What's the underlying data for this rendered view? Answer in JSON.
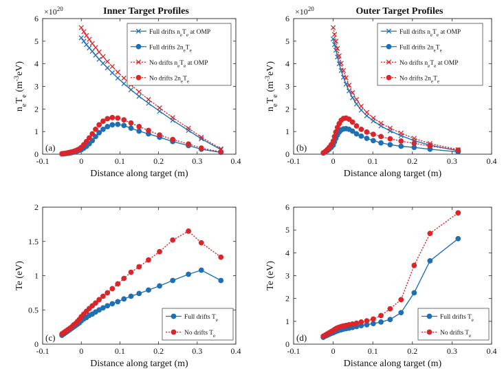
{
  "colors": {
    "full": "#1f6fb5",
    "nodrift": "#d9262b"
  },
  "chart_data": [
    {
      "id": "a",
      "type": "line",
      "tag": "(a)",
      "title": "Inner Target Profiles",
      "xlabel": "Distance along target (m)",
      "ylabel_main": "n",
      "ylabel_sub1": "e",
      "ylabel_mid": "T",
      "ylabel_sub2": "e",
      "ylabel_unit_pre": "(m",
      "ylabel_unit_sup": "-3",
      "ylabel_unit_post": "eV)",
      "y_scale_label": "×10",
      "y_scale_exp": "20",
      "xlim": [
        -0.1,
        0.4
      ],
      "ylim": [
        0,
        6
      ],
      "xticks": [
        "-0.1",
        "0",
        "0.1",
        "0.2",
        "0.3",
        "0.4"
      ],
      "yticks": [
        "0",
        "1",
        "2",
        "3",
        "4",
        "5",
        "6"
      ],
      "legend_position": "top-right",
      "series": [
        {
          "name": "Full drifts n_eT_e at OMP",
          "nm": "Full drifts n",
          "s1": "e",
          "mid": "T",
          "s2": "e",
          "tail": " at OMP",
          "style": "full",
          "marker": "x",
          "x": [
            0.0,
            0.0066,
            0.0134,
            0.0207,
            0.0285,
            0.037,
            0.0462,
            0.0564,
            0.0677,
            0.0803,
            0.0944,
            0.1104,
            0.1287,
            0.1496,
            0.174,
            0.2026,
            0.2366,
            0.2774,
            0.3107,
            0.3613
          ],
          "y": [
            5.15,
            5.0,
            4.85,
            4.7,
            4.55,
            4.38,
            4.2,
            4.02,
            3.82,
            3.6,
            3.37,
            3.12,
            2.85,
            2.56,
            2.25,
            1.9,
            1.5,
            1.05,
            0.68,
            0.2
          ]
        },
        {
          "name": "Full drifts 2n_eT_e",
          "nm": "Full drifts 2n",
          "s1": "e",
          "mid": "T",
          "s2": "e",
          "tail": "",
          "style": "full",
          "marker": "o",
          "x": [
            -0.05,
            -0.045,
            -0.04,
            -0.035,
            -0.03,
            -0.025,
            -0.02,
            -0.015,
            -0.01,
            -0.005,
            0.0,
            0.0066,
            0.0134,
            0.0207,
            0.0285,
            0.037,
            0.0462,
            0.0564,
            0.0677,
            0.0803,
            0.0944,
            0.1104,
            0.1287,
            0.1496,
            0.174,
            0.2026,
            0.2366,
            0.2774,
            0.3107,
            0.3613
          ],
          "y": [
            0.01,
            0.02,
            0.03,
            0.04,
            0.05,
            0.07,
            0.09,
            0.11,
            0.14,
            0.17,
            0.2,
            0.27,
            0.35,
            0.46,
            0.6,
            0.78,
            0.95,
            1.1,
            1.22,
            1.3,
            1.32,
            1.27,
            1.15,
            1.02,
            0.9,
            0.75,
            0.56,
            0.38,
            0.22,
            0.08
          ]
        },
        {
          "name": "No drifts n_eT_e at OMP",
          "nm": "No drifts n",
          "s1": "e",
          "mid": "T",
          "s2": "e",
          "tail": " at OMP",
          "style": "nodrift",
          "marker": "x",
          "x": [
            0.0,
            0.0066,
            0.0134,
            0.0207,
            0.0285,
            0.037,
            0.0462,
            0.0564,
            0.0677,
            0.0803,
            0.0944,
            0.1104,
            0.1287,
            0.1496,
            0.174,
            0.2026,
            0.2366,
            0.2774,
            0.3107,
            0.3613
          ],
          "y": [
            5.6,
            5.42,
            5.25,
            5.08,
            4.9,
            4.72,
            4.52,
            4.32,
            4.1,
            3.88,
            3.63,
            3.37,
            3.07,
            2.76,
            2.42,
            2.05,
            1.62,
            1.15,
            0.75,
            0.24
          ]
        },
        {
          "name": "No drifts 2n_eT_e",
          "nm": "No drifts 2n",
          "s1": "e",
          "mid": "T",
          "s2": "e",
          "tail": "",
          "style": "nodrift",
          "marker": "o",
          "x": [
            -0.05,
            -0.045,
            -0.04,
            -0.035,
            -0.03,
            -0.025,
            -0.02,
            -0.015,
            -0.01,
            -0.005,
            0.0,
            0.0066,
            0.0134,
            0.0207,
            0.0285,
            0.037,
            0.0462,
            0.0564,
            0.0677,
            0.0803,
            0.0944,
            0.1104,
            0.1287,
            0.1496,
            0.174,
            0.2026,
            0.2366,
            0.2774,
            0.3107,
            0.3613
          ],
          "y": [
            0.02,
            0.03,
            0.04,
            0.06,
            0.08,
            0.1,
            0.12,
            0.15,
            0.19,
            0.23,
            0.3,
            0.42,
            0.56,
            0.72,
            0.9,
            1.1,
            1.3,
            1.46,
            1.57,
            1.62,
            1.6,
            1.52,
            1.38,
            1.22,
            1.05,
            0.85,
            0.65,
            0.45,
            0.27,
            0.1
          ]
        }
      ]
    },
    {
      "id": "b",
      "type": "line",
      "tag": "(b)",
      "title": "Outer Target Profiles",
      "xlabel": "Distance along target (m)",
      "ylabel_main": "n",
      "ylabel_sub1": "e",
      "ylabel_mid": "T",
      "ylabel_sub2": "e",
      "ylabel_unit_pre": "(m",
      "ylabel_unit_sup": "-3",
      "ylabel_unit_post": "eV)",
      "y_scale_label": "×10",
      "y_scale_exp": "20",
      "xlim": [
        -0.1,
        0.4
      ],
      "ylim": [
        0,
        6
      ],
      "xticks": [
        "-0.1",
        "0",
        "0.1",
        "0.2",
        "0.3",
        "0.4"
      ],
      "yticks": [
        "0",
        "1",
        "2",
        "3",
        "4",
        "5",
        "6"
      ],
      "legend_position": "top-right",
      "series": [
        {
          "name": "Full drifts n_eT_e at OMP",
          "nm": "Full drifts n",
          "s1": "e",
          "mid": "T",
          "s2": "e",
          "tail": " at OMP",
          "style": "full",
          "marker": "x",
          "x": [
            0.0,
            0.0033,
            0.0068,
            0.0107,
            0.0151,
            0.0202,
            0.0259,
            0.0324,
            0.04,
            0.0488,
            0.0589,
            0.0708,
            0.0848,
            0.1012,
            0.1206,
            0.1437,
            0.1713,
            0.2044,
            0.2444,
            0.3154
          ],
          "y": [
            5.1,
            4.85,
            4.6,
            4.3,
            4.0,
            3.7,
            3.4,
            3.1,
            2.8,
            2.5,
            2.22,
            1.95,
            1.7,
            1.47,
            1.25,
            1.03,
            0.82,
            0.6,
            0.4,
            0.15
          ]
        },
        {
          "name": "Full drifts 2n_eT_e",
          "nm": "Full drifts 2n",
          "s1": "e",
          "mid": "T",
          "s2": "e",
          "tail": "",
          "style": "full",
          "marker": "o",
          "x": [
            -0.025,
            -0.02,
            -0.015,
            -0.01,
            -0.005,
            0.0,
            0.0033,
            0.0068,
            0.0107,
            0.0151,
            0.0202,
            0.0259,
            0.0324,
            0.04,
            0.0488,
            0.0589,
            0.0708,
            0.0848,
            0.1012,
            0.1206,
            0.1437,
            0.1713,
            0.2044,
            0.2444,
            0.3154
          ],
          "y": [
            0.05,
            0.1,
            0.15,
            0.22,
            0.3,
            0.4,
            0.55,
            0.7,
            0.85,
            0.98,
            1.07,
            1.12,
            1.13,
            1.1,
            1.02,
            0.9,
            0.8,
            0.7,
            0.6,
            0.5,
            0.42,
            0.35,
            0.3,
            0.22,
            0.1
          ]
        },
        {
          "name": "No drifts n_eT_e at OMP",
          "nm": "No drifts n",
          "s1": "e",
          "mid": "T",
          "s2": "e",
          "tail": " at OMP",
          "style": "nodrift",
          "marker": "x",
          "x": [
            0.0,
            0.0033,
            0.0068,
            0.0107,
            0.0151,
            0.0202,
            0.0259,
            0.0324,
            0.04,
            0.0488,
            0.0589,
            0.0708,
            0.0848,
            0.1012,
            0.1206,
            0.1437,
            0.1713,
            0.2044,
            0.2444,
            0.3154
          ],
          "y": [
            5.6,
            5.3,
            5.0,
            4.68,
            4.35,
            4.02,
            3.7,
            3.38,
            3.05,
            2.72,
            2.42,
            2.12,
            1.85,
            1.6,
            1.37,
            1.15,
            0.93,
            0.7,
            0.47,
            0.2
          ]
        },
        {
          "name": "No drifts 2n_eT_e",
          "nm": "No drifts 2n",
          "s1": "e",
          "mid": "T",
          "s2": "e",
          "tail": "",
          "style": "nodrift",
          "marker": "o",
          "x": [
            -0.025,
            -0.02,
            -0.015,
            -0.01,
            -0.005,
            0.0,
            0.0033,
            0.0068,
            0.0107,
            0.0151,
            0.0202,
            0.0259,
            0.0324,
            0.04,
            0.0488,
            0.0589,
            0.0708,
            0.0848,
            0.1012,
            0.1206,
            0.1437,
            0.1713,
            0.2044,
            0.2444,
            0.3154
          ],
          "y": [
            0.06,
            0.12,
            0.2,
            0.3,
            0.42,
            0.58,
            0.78,
            0.98,
            1.18,
            1.35,
            1.5,
            1.58,
            1.6,
            1.55,
            1.42,
            1.25,
            1.1,
            0.98,
            0.88,
            0.78,
            0.68,
            0.58,
            0.48,
            0.36,
            0.18
          ]
        }
      ]
    },
    {
      "id": "c",
      "type": "line",
      "tag": "(c)",
      "title": "",
      "xlabel": "Distance along target (m)",
      "ylabel": "Te (eV)",
      "xlim": [
        -0.1,
        0.4
      ],
      "ylim": [
        0,
        2
      ],
      "xticks": [
        "-0.1",
        "0",
        "0.1",
        "0.2",
        "0.3",
        "0.4"
      ],
      "yticks": [
        "0",
        "0.5",
        "1",
        "1.5",
        "2"
      ],
      "legend_position": "bottom-right",
      "series": [
        {
          "name": "Full drifts T_e",
          "nm": "Full drifts T",
          "s1": "e",
          "mid": "",
          "s2": "",
          "tail": "",
          "style": "full",
          "marker": "o",
          "x": [
            -0.05,
            -0.045,
            -0.04,
            -0.035,
            -0.03,
            -0.025,
            -0.02,
            -0.015,
            -0.01,
            -0.005,
            0.0,
            0.0066,
            0.0134,
            0.0207,
            0.0285,
            0.037,
            0.0462,
            0.0564,
            0.0677,
            0.0803,
            0.0944,
            0.1104,
            0.1287,
            0.1496,
            0.174,
            0.2026,
            0.2366,
            0.2774,
            0.3107,
            0.3613
          ],
          "y": [
            0.13,
            0.15,
            0.17,
            0.19,
            0.21,
            0.23,
            0.25,
            0.27,
            0.29,
            0.31,
            0.34,
            0.37,
            0.39,
            0.42,
            0.44,
            0.47,
            0.5,
            0.53,
            0.56,
            0.59,
            0.62,
            0.66,
            0.7,
            0.74,
            0.79,
            0.85,
            0.93,
            1.02,
            1.08,
            0.93
          ]
        },
        {
          "name": "No drifts T_e",
          "nm": "No drifts T",
          "s1": "e",
          "mid": "",
          "s2": "",
          "tail": "",
          "style": "nodrift",
          "marker": "o",
          "x": [
            -0.05,
            -0.045,
            -0.04,
            -0.035,
            -0.03,
            -0.025,
            -0.02,
            -0.015,
            -0.01,
            -0.005,
            0.0,
            0.0066,
            0.0134,
            0.0207,
            0.0285,
            0.037,
            0.0462,
            0.0564,
            0.0677,
            0.0803,
            0.0944,
            0.1104,
            0.1287,
            0.1496,
            0.174,
            0.2026,
            0.2366,
            0.2774,
            0.3107,
            0.3613
          ],
          "y": [
            0.15,
            0.17,
            0.19,
            0.21,
            0.23,
            0.25,
            0.28,
            0.3,
            0.33,
            0.36,
            0.4,
            0.44,
            0.48,
            0.52,
            0.56,
            0.6,
            0.65,
            0.7,
            0.75,
            0.81,
            0.88,
            0.96,
            1.05,
            1.13,
            1.23,
            1.35,
            1.52,
            1.65,
            1.48,
            1.27
          ]
        }
      ]
    },
    {
      "id": "d",
      "type": "line",
      "tag": "(d)",
      "title": "",
      "xlabel": "Distance along target (m)",
      "ylabel": "Te (eV)",
      "xlim": [
        -0.1,
        0.4
      ],
      "ylim": [
        0,
        6
      ],
      "xticks": [
        "-0.1",
        "0",
        "0.1",
        "0.2",
        "0.3",
        "0.4"
      ],
      "yticks": [
        "0",
        "1",
        "2",
        "3",
        "4",
        "5",
        "6"
      ],
      "legend_position": "bottom-right",
      "series": [
        {
          "name": "Full drifts T_e",
          "nm": "Full drifts T",
          "s1": "e",
          "mid": "",
          "s2": "",
          "tail": "",
          "style": "full",
          "marker": "o",
          "x": [
            -0.025,
            -0.02,
            -0.015,
            -0.01,
            -0.005,
            0.0,
            0.0033,
            0.0068,
            0.0107,
            0.0151,
            0.0202,
            0.0259,
            0.0324,
            0.04,
            0.0488,
            0.0589,
            0.0708,
            0.0848,
            0.1012,
            0.1206,
            0.1437,
            0.1713,
            0.2044,
            0.2444,
            0.3154
          ],
          "y": [
            0.3,
            0.35,
            0.39,
            0.43,
            0.47,
            0.5,
            0.53,
            0.56,
            0.58,
            0.61,
            0.63,
            0.66,
            0.68,
            0.7,
            0.73,
            0.77,
            0.81,
            0.85,
            0.9,
            0.97,
            1.08,
            1.38,
            2.25,
            3.65,
            4.62
          ]
        },
        {
          "name": "No drifts T_e",
          "nm": "No drifts T",
          "s1": "e",
          "mid": "",
          "s2": "",
          "tail": "",
          "style": "nodrift",
          "marker": "o",
          "x": [
            -0.025,
            -0.02,
            -0.015,
            -0.01,
            -0.005,
            0.0,
            0.0033,
            0.0068,
            0.0107,
            0.0151,
            0.0202,
            0.0259,
            0.0324,
            0.04,
            0.0488,
            0.0589,
            0.0708,
            0.0848,
            0.1012,
            0.1206,
            0.1437,
            0.1713,
            0.2044,
            0.2444,
            0.3154
          ],
          "y": [
            0.35,
            0.4,
            0.45,
            0.5,
            0.55,
            0.6,
            0.64,
            0.68,
            0.71,
            0.74,
            0.77,
            0.8,
            0.82,
            0.85,
            0.88,
            0.92,
            0.97,
            1.02,
            1.1,
            1.25,
            1.55,
            1.95,
            3.45,
            4.85,
            5.75
          ]
        }
      ]
    }
  ]
}
